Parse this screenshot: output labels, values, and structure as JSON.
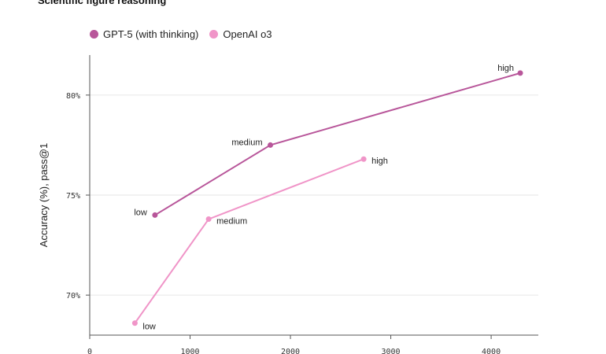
{
  "chart_data": {
    "type": "line",
    "title": "Scientific figure reasoning",
    "xlabel": "",
    "ylabel": "Accuracy (%), pass@1",
    "xlim": [
      0,
      4470
    ],
    "ylim": [
      68,
      82
    ],
    "xticks": [
      0,
      1000,
      2000,
      3000,
      4000
    ],
    "xtick_labels": [
      "0",
      "1000",
      "2000",
      "3000",
      "4000"
    ],
    "yticks": [
      70,
      75,
      80
    ],
    "ytick_labels": [
      "70%",
      "75%",
      "80%"
    ],
    "grid": "horizontal",
    "legend": "top-left",
    "series": [
      {
        "name": "GPT-5 (with thinking)",
        "color": "#b8569a",
        "points": [
          {
            "x": 650,
            "y": 74.0,
            "label": "low"
          },
          {
            "x": 1800,
            "y": 77.5,
            "label": "medium"
          },
          {
            "x": 4290,
            "y": 81.1,
            "label": "high"
          }
        ]
      },
      {
        "name": "OpenAI o3",
        "color": "#f095c8",
        "points": [
          {
            "x": 450,
            "y": 68.6,
            "label": "low"
          },
          {
            "x": 1185,
            "y": 73.8,
            "label": "medium"
          },
          {
            "x": 2730,
            "y": 76.8,
            "label": "high"
          }
        ]
      }
    ]
  }
}
